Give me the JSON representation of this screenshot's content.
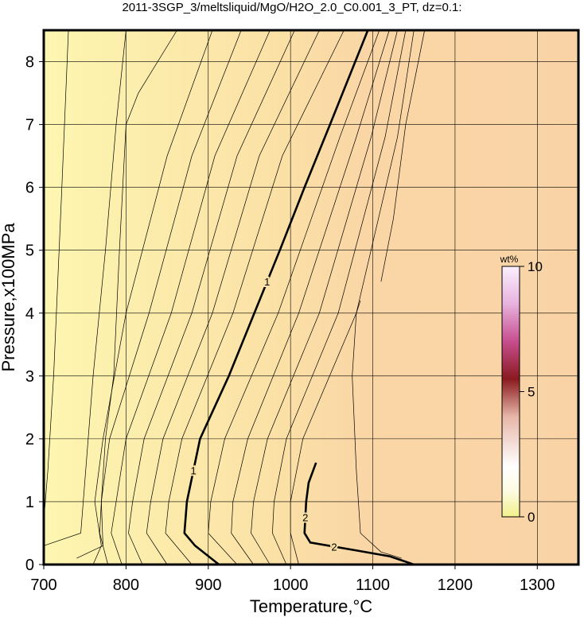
{
  "chart_data": {
    "type": "contour",
    "title": "2011-3SGP_3/meltsliquid/MgO/H2O_2.0_C0.001_3_PT, dz=0.1:",
    "x_label": "Temperature,°C",
    "y_label": "Pressure,x100MPa",
    "xlim": [
      700,
      1350
    ],
    "ylim": [
      0,
      8.5
    ],
    "xticks": [
      700,
      800,
      900,
      1000,
      1100,
      1200,
      1300
    ],
    "yticks": [
      0,
      1,
      2,
      3,
      4,
      5,
      6,
      7,
      8
    ],
    "grid": true,
    "colorbar": {
      "title": "wt%",
      "lim": [
        0,
        10
      ],
      "ticks": [
        0,
        5,
        10
      ]
    },
    "contours": [
      {
        "label": "1",
        "x": [
          1094,
          1048,
          1017,
          987,
          956,
          925,
          890,
          874,
          871,
          884,
          913
        ],
        "y": [
          8.5,
          7,
          6,
          5,
          4,
          3,
          2,
          1,
          0.5,
          0.3,
          0
        ]
      },
      {
        "label": "2",
        "x": [
          1031,
          1022,
          1019,
          1017,
          1024,
          1082,
          1121,
          1150
        ],
        "y": [
          1.62,
          1.3,
          1,
          0.5,
          0.35,
          0.22,
          0.13,
          0
        ]
      },
      {
        "x": [
          1065,
          990,
          930,
          868,
          852,
          848,
          880
        ],
        "y": [
          8.5,
          6.5,
          4,
          2,
          1,
          0.5,
          0
        ]
      },
      {
        "x": [
          1035,
          962,
          905,
          845,
          830,
          825,
          850
        ],
        "y": [
          8.5,
          6.5,
          4,
          2,
          1,
          0.5,
          0
        ]
      },
      {
        "x": [
          1005,
          935,
          880,
          822,
          808,
          803,
          820
        ],
        "y": [
          8.5,
          6.5,
          4,
          2,
          1,
          0.5,
          0
        ]
      },
      {
        "x": [
          975,
          908,
          855,
          800,
          788,
          782,
          795
        ],
        "y": [
          8.5,
          6.5,
          4,
          2,
          1,
          0.5,
          0
        ]
      },
      {
        "x": [
          940,
          880,
          828,
          780,
          770,
          768,
          778
        ],
        "y": [
          8.5,
          6.5,
          4,
          2,
          1,
          0.5,
          0
        ]
      },
      {
        "x": [
          905,
          850,
          800,
          772,
          762,
          770,
          760
        ],
        "y": [
          8.5,
          6.5,
          4,
          2,
          1,
          0.3,
          0
        ]
      },
      {
        "x": [
          862,
          815,
          800,
          792,
          785,
          775,
          770,
          772,
          740
        ],
        "y": [
          8.5,
          7.5,
          7,
          5,
          3,
          2,
          1,
          0.3,
          0.1
        ]
      },
      {
        "x": [
          800,
          788,
          775,
          760,
          748,
          745,
          700
        ],
        "y": [
          8.5,
          7,
          5,
          3,
          1,
          0.5,
          0.3
        ]
      },
      {
        "x": [
          730,
          722,
          712,
          705,
          700
        ],
        "y": [
          8.5,
          6,
          3,
          1.5,
          0.7
        ]
      },
      {
        "x": [
          1108,
          1060,
          985,
          920,
          903,
          900,
          935
        ],
        "y": [
          8.5,
          6.8,
          4,
          2,
          1,
          0.5,
          0
        ]
      },
      {
        "x": [
          1120,
          1080,
          1010,
          948,
          930,
          928,
          955
        ],
        "y": [
          8.5,
          6.8,
          4,
          2,
          1,
          0.5,
          0
        ]
      },
      {
        "x": [
          1130,
          1098,
          1035,
          972,
          955,
          952,
          975
        ],
        "y": [
          8.5,
          6.8,
          4,
          2,
          1,
          0.5,
          0
        ]
      },
      {
        "x": [
          1140,
          1115,
          1058,
          995,
          980,
          978,
          995
        ],
        "y": [
          8.5,
          6.8,
          4,
          2,
          1,
          0.5,
          0
        ]
      },
      {
        "x": [
          1150,
          1130,
          1080,
          1015,
          1000,
          1000,
          1010
        ],
        "y": [
          8.5,
          6.8,
          4,
          2,
          1,
          0.5,
          0
        ]
      },
      {
        "x": [
          1085,
          1080,
          1075,
          1080,
          1085,
          1110,
          1135
        ],
        "y": [
          4.2,
          4.0,
          3.0,
          1.5,
          0.5,
          0.2,
          0.1
        ]
      },
      {
        "x": [
          1163,
          1140,
          1125,
          1110
        ],
        "y": [
          8.5,
          7,
          5.5,
          4.5
        ]
      }
    ]
  }
}
